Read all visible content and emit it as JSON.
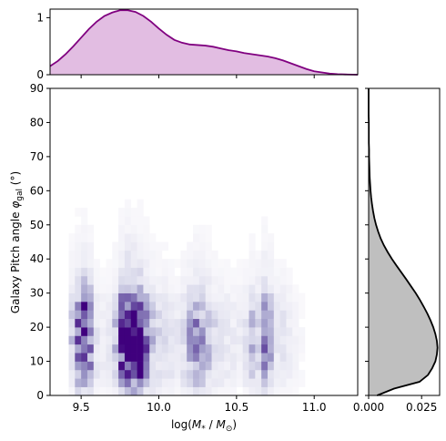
{
  "chart_data": [
    {
      "type": "heatmap",
      "panel": "main",
      "xlabel_parts": [
        "log(",
        "M",
        "*",
        " / ",
        "M",
        "⊙",
        ")"
      ],
      "ylabel_parts": [
        "Galaxy Pitch angle ",
        "φ",
        "gal",
        " (°)"
      ],
      "xlim": [
        9.3,
        11.28
      ],
      "ylim": [
        0,
        90
      ],
      "x_ticks": [
        9.5,
        10.0,
        10.5,
        11.0
      ],
      "x_tick_labels": [
        "9.5",
        "10.0",
        "10.5",
        "11.0"
      ],
      "y_ticks": [
        0,
        10,
        20,
        30,
        40,
        50,
        60,
        70,
        80,
        90
      ],
      "y_tick_labels": [
        "0",
        "10",
        "20",
        "30",
        "40",
        "50",
        "60",
        "70",
        "80",
        "90"
      ],
      "colormap": "Purples",
      "bin_width_x": 0.04,
      "bin_height_y": 2.5,
      "x_bin_centers": [
        9.44,
        9.48,
        9.52,
        9.56,
        9.6,
        9.64,
        9.68,
        9.72,
        9.76,
        9.8,
        9.84,
        9.88,
        9.92,
        9.96,
        10.0,
        10.04,
        10.08,
        10.12,
        10.16,
        10.2,
        10.24,
        10.28,
        10.32,
        10.36,
        10.4,
        10.44,
        10.48,
        10.52,
        10.56,
        10.6,
        10.64,
        10.68,
        10.72,
        10.76,
        10.8,
        10.84,
        10.88,
        10.92
      ],
      "column_intensity": [
        0.25,
        0.55,
        0.7,
        0.5,
        0.15,
        0.1,
        0.12,
        0.3,
        0.75,
        1.0,
        0.95,
        0.75,
        0.5,
        0.3,
        0.2,
        0.18,
        0.15,
        0.12,
        0.2,
        0.35,
        0.45,
        0.4,
        0.3,
        0.2,
        0.15,
        0.12,
        0.1,
        0.1,
        0.15,
        0.3,
        0.25,
        0.5,
        0.35,
        0.15,
        0.15,
        0.1,
        0.05,
        0.03
      ],
      "row_centers_deg": [
        1.25,
        3.75,
        6.25,
        8.75,
        11.25,
        13.75,
        16.25,
        18.75,
        21.25,
        23.75,
        26.25,
        28.75,
        31.25,
        33.75,
        36.25,
        38.75,
        41.25,
        43.75,
        46.25,
        48.75,
        51.25,
        53.75,
        56.25,
        58.75,
        61.25,
        63.75,
        66.25,
        68.75,
        71.25,
        73.75,
        76.25,
        78.75,
        81.25,
        83.75
      ],
      "row_intensity": [
        0.3,
        0.55,
        0.75,
        0.85,
        0.9,
        0.95,
        1.0,
        1.0,
        0.95,
        0.85,
        0.7,
        0.55,
        0.4,
        0.3,
        0.22,
        0.16,
        0.12,
        0.09,
        0.07,
        0.05,
        0.04,
        0.03,
        0.025,
        0.02,
        0.015,
        0.012,
        0.01,
        0.008,
        0.006,
        0.005,
        0.004,
        0.003,
        0.002,
        0.002
      ],
      "hotspots": [
        {
          "x": 9.88,
          "y": 15,
          "weight": 1.0
        },
        {
          "x": 9.84,
          "y": 22.5,
          "weight": 0.85
        },
        {
          "x": 9.88,
          "y": 10,
          "weight": 0.8
        },
        {
          "x": 9.8,
          "y": 17.5,
          "weight": 0.7
        },
        {
          "x": 9.52,
          "y": 27.5,
          "weight": 0.55
        },
        {
          "x": 9.52,
          "y": 15,
          "weight": 0.5
        }
      ]
    },
    {
      "type": "area",
      "panel": "top-marginal",
      "series_color": "#800080",
      "fill_color": "#e2bde2",
      "ylim": [
        0,
        1.15
      ],
      "y_ticks": [
        0,
        1
      ],
      "y_tick_labels": [
        "0",
        "1"
      ],
      "x": [
        9.3,
        9.35,
        9.4,
        9.45,
        9.5,
        9.55,
        9.6,
        9.65,
        9.7,
        9.75,
        9.8,
        9.85,
        9.9,
        9.95,
        10.0,
        10.05,
        10.1,
        10.15,
        10.2,
        10.25,
        10.3,
        10.35,
        10.4,
        10.45,
        10.5,
        10.55,
        10.6,
        10.65,
        10.7,
        10.75,
        10.8,
        10.85,
        10.9,
        10.95,
        11.0,
        11.05,
        11.1,
        11.15,
        11.2,
        11.25,
        11.28
      ],
      "values": [
        0.15,
        0.24,
        0.36,
        0.5,
        0.65,
        0.8,
        0.93,
        1.03,
        1.09,
        1.13,
        1.13,
        1.1,
        1.03,
        0.93,
        0.81,
        0.7,
        0.61,
        0.56,
        0.53,
        0.52,
        0.51,
        0.49,
        0.46,
        0.43,
        0.41,
        0.38,
        0.36,
        0.34,
        0.32,
        0.29,
        0.25,
        0.2,
        0.15,
        0.1,
        0.06,
        0.04,
        0.02,
        0.01,
        0.005,
        0.002,
        0.001
      ]
    },
    {
      "type": "area",
      "panel": "right-marginal",
      "series_color": "#000000",
      "fill_color": "#bfbfbf",
      "xlim": [
        0,
        0.0335
      ],
      "x_ticks": [
        0.0,
        0.025
      ],
      "x_tick_labels": [
        "0.000",
        "0.025"
      ],
      "y": [
        0,
        2,
        4,
        6,
        8,
        10,
        12,
        14,
        16,
        18,
        20,
        22,
        24,
        26,
        28,
        30,
        32,
        34,
        36,
        38,
        40,
        42,
        44,
        46,
        48,
        50,
        52,
        54,
        56,
        58,
        60,
        62,
        64,
        66,
        68,
        70,
        72,
        74,
        76,
        78,
        80,
        82,
        84,
        86,
        88,
        90
      ],
      "values": [
        0.004,
        0.012,
        0.024,
        0.028,
        0.03,
        0.0315,
        0.0322,
        0.0325,
        0.0322,
        0.0315,
        0.0305,
        0.0292,
        0.0277,
        0.026,
        0.0242,
        0.0222,
        0.02,
        0.0178,
        0.0155,
        0.0132,
        0.011,
        0.009,
        0.0072,
        0.0057,
        0.0045,
        0.0035,
        0.0027,
        0.0021,
        0.0016,
        0.0012,
        0.0009,
        0.0007,
        0.0005,
        0.0004,
        0.0003,
        0.0002,
        0.0002,
        0.0001,
        0.0001,
        0.0001,
        0.0001,
        0.0,
        0.0,
        0.0,
        0.0,
        0.0
      ]
    }
  ]
}
